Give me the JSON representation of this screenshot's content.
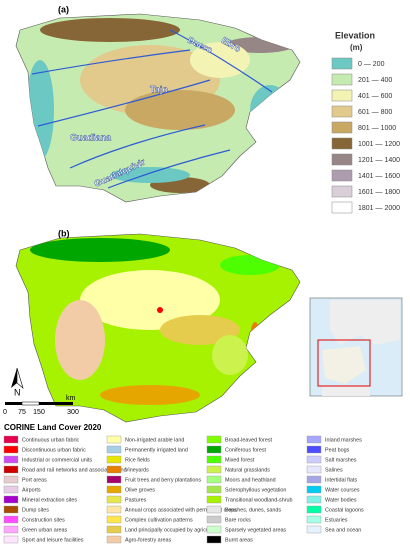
{
  "panels": {
    "a": "(a)",
    "b": "(b)"
  },
  "rivers": [
    "Duero",
    "Ebro",
    "Tajo",
    "Guadiana",
    "Guadalquivir"
  ],
  "elevation_legend": {
    "title": "Elevation",
    "unit": "(m)",
    "items": [
      {
        "label": "0 — 200",
        "color": "#6cc8c2"
      },
      {
        "label": "201 — 400",
        "color": "#c6ebb0"
      },
      {
        "label": "401 — 600",
        "color": "#f3f3b4"
      },
      {
        "label": "601 — 800",
        "color": "#e2ca8c"
      },
      {
        "label": "801 — 1000",
        "color": "#c8a862"
      },
      {
        "label": "1001 — 1200",
        "color": "#866636"
      },
      {
        "label": "1201 — 1400",
        "color": "#978686"
      },
      {
        "label": "1401 — 1600",
        "color": "#ad9cad"
      },
      {
        "label": "1601 — 1800",
        "color": "#d8cfd8"
      },
      {
        "label": "1801 — 2000",
        "color": "#ffffff"
      }
    ]
  },
  "north": "N",
  "scale_bar": {
    "ticks": [
      "0",
      "75",
      "150",
      "300"
    ],
    "unit": "km"
  },
  "corine_legend": {
    "title": "CORINE  Land Cover 2020",
    "columns": [
      [
        {
          "label": "Continuous urban fabric",
          "color": "#e6004d"
        },
        {
          "label": "Discontinuous urban fabric",
          "color": "#ff0000"
        },
        {
          "label": "Industrial or commercial units",
          "color": "#cc4df2"
        },
        {
          "label": "Road and rail networks and associated land",
          "color": "#cc0000"
        },
        {
          "label": "Port areas",
          "color": "#e6cccc"
        },
        {
          "label": "Airports",
          "color": "#e6cce6"
        },
        {
          "label": "Mineral extraction sites",
          "color": "#a600cc"
        },
        {
          "label": "Dump sites",
          "color": "#a64d00"
        },
        {
          "label": "Construction sites",
          "color": "#ff4dff"
        },
        {
          "label": "Green urban areas",
          "color": "#ffa6ff"
        },
        {
          "label": "Sport and leisure facilities",
          "color": "#ffe6ff"
        }
      ],
      [
        {
          "label": "Non-irrigated arable land",
          "color": "#ffffa8"
        },
        {
          "label": "Permanently irrigated land",
          "color": "#a6cfe6"
        },
        {
          "label": "Rice fields",
          "color": "#e6e600"
        },
        {
          "label": "Vineyards",
          "color": "#e68000"
        },
        {
          "label": "Fruit trees and berry plantations",
          "color": "#a6006a"
        },
        {
          "label": "Olive groves",
          "color": "#e6a600"
        },
        {
          "label": "Pastures",
          "color": "#e6e64d"
        },
        {
          "label": "Annual crops associated with permanent crops",
          "color": "#ffe6a6"
        },
        {
          "label": "Complex cultivation patterns",
          "color": "#ffe64d"
        },
        {
          "label": "Land principally occupied by agriculture",
          "color": "#e6cc4d"
        },
        {
          "label": "Agro-forestry areas",
          "color": "#f2cca6"
        }
      ],
      [
        {
          "label": "Broad-leaved forest",
          "color": "#80ff00"
        },
        {
          "label": "Coniferous forest",
          "color": "#00a600"
        },
        {
          "label": "Mixed forest",
          "color": "#4dff00"
        },
        {
          "label": "Natural grasslands",
          "color": "#ccf24d"
        },
        {
          "label": "Moors and heathland",
          "color": "#a6ff80"
        },
        {
          "label": "Sclerophyllous vegetation",
          "color": "#a6e64d"
        },
        {
          "label": "Transitional woodland-shrub",
          "color": "#a6f200"
        },
        {
          "label": "Beaches, dunes, sands",
          "color": "#e6e6e6"
        },
        {
          "label": "Bare rocks",
          "color": "#cccccc"
        },
        {
          "label": "Sparsely vegetated areas",
          "color": "#ccffcc"
        },
        {
          "label": "Burnt areas",
          "color": "#000000"
        }
      ],
      [
        {
          "label": "Inland marshes",
          "color": "#a6a6ff"
        },
        {
          "label": "Peat bogs",
          "color": "#4d4dff"
        },
        {
          "label": "Salt marshes",
          "color": "#ccccff"
        },
        {
          "label": "Salines",
          "color": "#e6e6ff"
        },
        {
          "label": "Intertidal flats",
          "color": "#a6a6e6"
        },
        {
          "label": "Water courses",
          "color": "#00ccf2"
        },
        {
          "label": "Water bodies",
          "color": "#80f2e6"
        },
        {
          "label": "Coastal lagoons",
          "color": "#00ffa6"
        },
        {
          "label": "Estuaries",
          "color": "#a6ffe6"
        },
        {
          "label": "Sea and ocean",
          "color": "#e6f2ff"
        }
      ]
    ]
  }
}
